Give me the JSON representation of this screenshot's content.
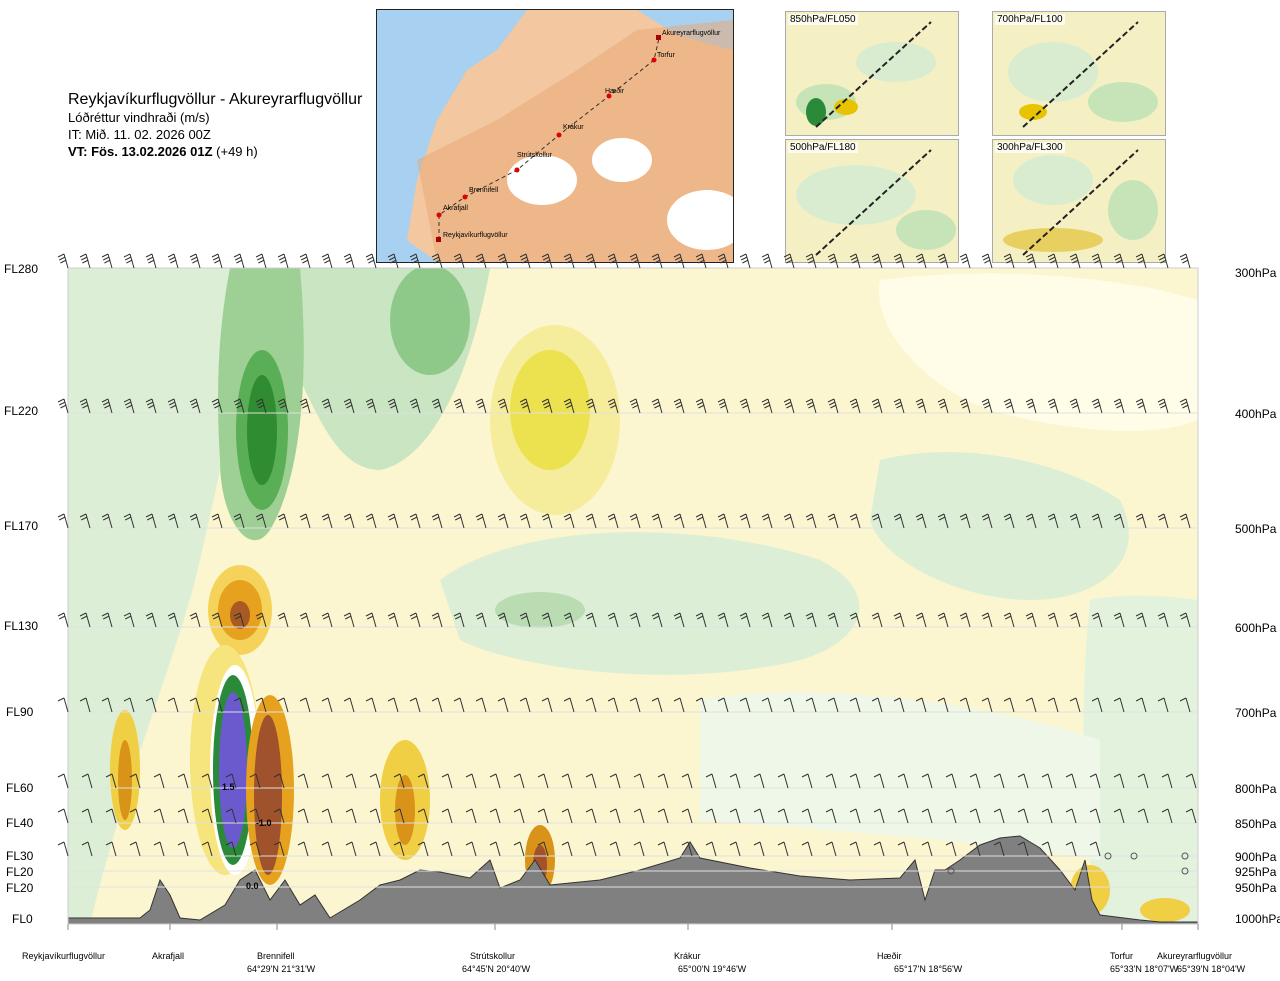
{
  "header": {
    "title": "Reykjavíkurflugvöllur - Akureyrarflugvöllur",
    "subtitle": "Lóðréttur vindhraði (m/s)",
    "issue_time": "IT: Mið. 11. 02. 2026 00Z",
    "valid_prefix": "VT: Fös. 13.02.2026 01Z",
    "valid_suffix": "(+49 h)"
  },
  "map": {
    "route_points": [
      "Akureyrarflugvöllur",
      "Torfur",
      "Hæðir",
      "Krákur",
      "Strútskollur",
      "Brennifell",
      "Akrafjall",
      "Reykjavíkurflugvöllur"
    ]
  },
  "panels": [
    {
      "label": "850hPa/FL050"
    },
    {
      "label": "700hPa/FL100"
    },
    {
      "label": "500hPa/FL180"
    },
    {
      "label": "300hPa/FL300"
    }
  ],
  "left_axis": [
    "FL280",
    "FL220",
    "FL170",
    "FL130",
    "FL90",
    "FL60",
    "FL40",
    "FL30",
    "FL20",
    "FL20",
    "FL0"
  ],
  "right_axis": [
    "300hPa",
    "400hPa",
    "500hPa",
    "600hPa",
    "700hPa",
    "800hPa",
    "850hPa",
    "900hPa",
    "925hPa",
    "950hPa",
    "1000hPa"
  ],
  "bottom_locations": [
    {
      "name": "Reykjavíkurflugvöllur",
      "coord": ""
    },
    {
      "name": "Akrafjall",
      "coord": ""
    },
    {
      "name": "Brennifell",
      "coord": "64°29'N 21°31'W"
    },
    {
      "name": "Strútskollur",
      "coord": "64°45'N 20°40'W"
    },
    {
      "name": "Krákur",
      "coord": "65°00'N 19°46'W"
    },
    {
      "name": "Hæðir",
      "coord": "65°17'N 18°56'W"
    },
    {
      "name": "Torfur",
      "coord": "65°33'N 18°07'W"
    },
    {
      "name": "Akureyrarflugvöllur",
      "coord": "65°39'N 18°04'W"
    }
  ],
  "contour_labels": [
    "1.5",
    "-1.0",
    "0.0"
  ],
  "chart_data": {
    "type": "heatmap",
    "title": "Reykjavíkurflugvöllur - Akureyrarflugvöllur",
    "variable": "Lóðréttur vindhraði (m/s)",
    "y_levels_hpa": [
      300,
      400,
      500,
      600,
      700,
      800,
      850,
      900,
      925,
      950,
      1000
    ],
    "x_stations": [
      "Reykjavíkurflugvöllur",
      "Akrafjall",
      "Brennifell",
      "Strútskollur",
      "Krákur",
      "Hæðir",
      "Torfur",
      "Akureyrarflugvöllur"
    ],
    "colors": {
      "strong_down": "#6a5acd",
      "down": "#1f8f2a",
      "weak_down": "#cfe8cc",
      "neutral": "#fffbe0",
      "weak_up": "#f5e9a0",
      "up": "#e8c400",
      "strong_up": "#a0522d",
      "terrain": "#808080"
    },
    "annotations": [
      {
        "text": "1.5",
        "station": "Brennifell",
        "level_hpa": 810
      },
      {
        "text": "-1.0",
        "station": "Brennifell",
        "level_hpa": 850
      },
      {
        "text": "0.0",
        "station": "Brennifell",
        "level_hpa": 965
      }
    ]
  }
}
